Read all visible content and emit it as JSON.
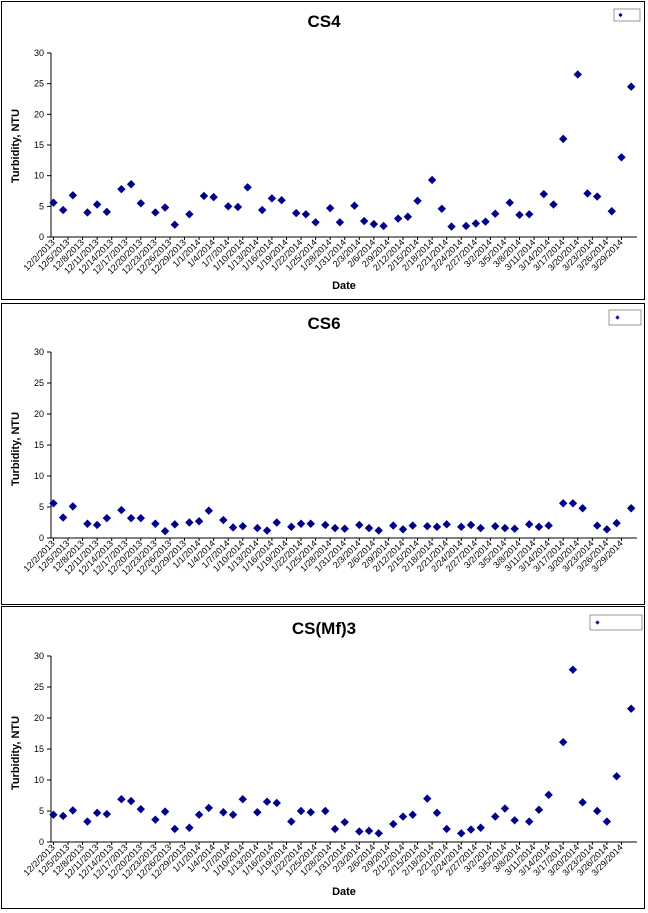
{
  "chart_data": [
    {
      "type": "scatter",
      "title": "CS4",
      "xlabel": "Date",
      "ylabel": "Turbidity, NTU",
      "ylim": [
        0,
        30
      ],
      "yticks": [
        0,
        5,
        10,
        15,
        20,
        25,
        30
      ],
      "legend_position": "top-right",
      "marker_color": "#00008B",
      "x_tick_labels": [
        "12/2/2013",
        "12/5/2013",
        "12/8/2013",
        "12/11/2013",
        "12/14/2013",
        "12/17/2013",
        "12/20/2013",
        "12/23/2013",
        "12/26/2013",
        "12/29/2013",
        "1/1/2014",
        "1/4/2014",
        "1/7/2014",
        "1/10/2014",
        "1/13/2014",
        "1/16/2014",
        "1/19/2014",
        "1/22/2014",
        "1/25/2014",
        "1/28/2014",
        "1/31/2014",
        "2/3/2014",
        "2/6/2014",
        "2/9/2014",
        "2/12/2014",
        "2/15/2014",
        "2/18/2014",
        "2/21/2014",
        "2/24/2014",
        "2/27/2014",
        "3/2/2014",
        "3/5/2014",
        "3/8/2014",
        "3/11/2014",
        "3/14/2014",
        "3/17/2014",
        "3/20/2014",
        "3/23/2014",
        "3/26/2014",
        "3/29/2014"
      ],
      "series": [
        {
          "x": [
            "12/2/2013",
            "12/4/2013",
            "12/6/2013",
            "12/9/2013",
            "12/11/2013",
            "12/13/2013",
            "12/16/2013",
            "12/18/2013",
            "12/20/2013",
            "12/23/2013",
            "12/25/2013",
            "12/27/2013",
            "12/30/2013",
            "1/2/2014",
            "1/4/2014",
            "1/7/2014",
            "1/9/2014",
            "1/11/2014",
            "1/14/2014",
            "1/16/2014",
            "1/18/2014",
            "1/21/2014",
            "1/23/2014",
            "1/25/2014",
            "1/28/2014",
            "1/30/2014",
            "2/2/2014",
            "2/4/2014",
            "2/6/2014",
            "2/8/2014",
            "2/11/2014",
            "2/13/2014",
            "2/15/2014",
            "2/18/2014",
            "2/20/2014",
            "2/22/2014",
            "2/25/2014",
            "2/27/2014",
            "3/1/2014",
            "3/3/2014",
            "3/6/2014",
            "3/8/2014",
            "3/10/2014",
            "3/13/2014",
            "3/15/2014",
            "3/17/2014",
            "3/20/2014",
            "3/22/2014",
            "3/24/2014",
            "3/27/2014",
            "3/29/2014",
            "3/31/2014"
          ],
          "y": [
            5.6,
            4.4,
            6.8,
            4.0,
            5.3,
            4.1,
            7.8,
            8.6,
            5.5,
            4.0,
            4.8,
            2.0,
            3.7,
            6.7,
            6.5,
            5.0,
            4.9,
            8.1,
            4.4,
            6.3,
            6.0,
            3.9,
            3.7,
            2.4,
            4.7,
            2.4,
            5.1,
            2.6,
            2.1,
            1.8,
            3.0,
            3.3,
            5.9,
            9.3,
            4.6,
            1.7,
            1.8,
            2.2,
            2.5,
            3.8,
            5.6,
            3.6,
            3.7,
            7.0,
            5.3,
            16.0,
            26.5,
            7.1,
            6.6,
            4.2,
            13.0,
            24.5
          ]
        }
      ]
    },
    {
      "type": "scatter",
      "title": "CS6",
      "xlabel": "",
      "ylabel": "Turbidity, NTU",
      "ylim": [
        0,
        30
      ],
      "yticks": [
        0,
        5,
        10,
        15,
        20,
        25,
        30
      ],
      "legend_position": "top-right",
      "marker_color": "#00008B",
      "x_tick_labels": [
        "12/2/2013",
        "12/5/2013",
        "12/8/2013",
        "12/11/2013",
        "12/14/2013",
        "12/17/2013",
        "12/20/2013",
        "12/23/2013",
        "12/26/2013",
        "12/29/2013",
        "1/1/2014",
        "1/4/2014",
        "1/7/2014",
        "1/10/2014",
        "1/13/2014",
        "1/16/2014",
        "1/19/2014",
        "1/22/2014",
        "1/25/2014",
        "1/28/2014",
        "1/31/2014",
        "2/3/2014",
        "2/6/2014",
        "2/9/2014",
        "2/12/2014",
        "2/15/2014",
        "2/18/2014",
        "2/21/2014",
        "2/24/2014",
        "2/27/2014",
        "3/2/2014",
        "3/5/2014",
        "3/8/2014",
        "3/11/2014",
        "3/14/2014",
        "3/17/2014",
        "3/20/2014",
        "3/23/2014",
        "3/26/2014",
        "3/29/2014"
      ],
      "series": [
        {
          "x": [
            "12/2/2013",
            "12/4/2013",
            "12/6/2013",
            "12/9/2013",
            "12/11/2013",
            "12/13/2013",
            "12/16/2013",
            "12/18/2013",
            "12/20/2013",
            "12/23/2013",
            "12/25/2013",
            "12/27/2013",
            "12/30/2013",
            "1/1/2014",
            "1/3/2014",
            "1/6/2014",
            "1/8/2014",
            "1/10/2014",
            "1/13/2014",
            "1/15/2014",
            "1/17/2014",
            "1/20/2014",
            "1/22/2014",
            "1/24/2014",
            "1/27/2014",
            "1/29/2014",
            "1/31/2014",
            "2/3/2014",
            "2/5/2014",
            "2/7/2014",
            "2/10/2014",
            "2/12/2014",
            "2/14/2014",
            "2/17/2014",
            "2/19/2014",
            "2/21/2014",
            "2/24/2014",
            "2/26/2014",
            "2/28/2014",
            "3/3/2014",
            "3/5/2014",
            "3/7/2014",
            "3/10/2014",
            "3/12/2014",
            "3/14/2014",
            "3/17/2014",
            "3/19/2014",
            "3/21/2014",
            "3/24/2014",
            "3/26/2014",
            "3/28/2014",
            "3/31/2014"
          ],
          "y": [
            5.6,
            3.3,
            5.1,
            2.3,
            2.1,
            3.2,
            4.5,
            3.2,
            3.2,
            2.3,
            1.1,
            2.2,
            2.5,
            2.7,
            4.4,
            2.9,
            1.7,
            1.9,
            1.6,
            1.2,
            2.5,
            1.8,
            2.3,
            2.3,
            2.1,
            1.6,
            1.5,
            2.1,
            1.6,
            1.2,
            2.0,
            1.4,
            2.0,
            1.9,
            1.8,
            2.2,
            1.8,
            2.1,
            1.6,
            1.9,
            1.6,
            1.5,
            2.2,
            1.8,
            2.0,
            5.6,
            5.6,
            4.8,
            2.0,
            1.4,
            2.4,
            4.8
          ]
        }
      ]
    },
    {
      "type": "scatter",
      "title": "CS(Mf)3",
      "xlabel": "Date",
      "ylabel": "Turbidity, NTU",
      "ylim": [
        0,
        30
      ],
      "yticks": [
        0,
        5,
        10,
        15,
        20,
        25,
        30
      ],
      "legend_position": "top-right",
      "marker_color": "#00008B",
      "x_tick_labels": [
        "12/2/2013",
        "12/5/2013",
        "12/8/2013",
        "12/11/2013",
        "12/14/2013",
        "12/17/2013",
        "12/20/2013",
        "12/23/2013",
        "12/26/2013",
        "12/29/2013",
        "1/1/2014",
        "1/4/2014",
        "1/7/2014",
        "1/10/2014",
        "1/13/2014",
        "1/16/2014",
        "1/19/2014",
        "1/22/2014",
        "1/25/2014",
        "1/28/2014",
        "1/31/2014",
        "2/3/2014",
        "2/6/2014",
        "2/9/2014",
        "2/12/2014",
        "2/15/2014",
        "2/18/2014",
        "2/21/2014",
        "2/24/2014",
        "2/27/2014",
        "3/2/2014",
        "3/5/2014",
        "3/8/2014",
        "3/11/2014",
        "3/14/2014",
        "3/17/2014",
        "3/20/2014",
        "3/23/2014",
        "3/26/2014",
        "3/29/2014"
      ],
      "series": [
        {
          "x": [
            "12/2/2013",
            "12/4/2013",
            "12/6/2013",
            "12/9/2013",
            "12/11/2013",
            "12/13/2013",
            "12/16/2013",
            "12/18/2013",
            "12/20/2013",
            "12/23/2013",
            "12/25/2013",
            "12/27/2013",
            "12/30/2013",
            "1/1/2014",
            "1/3/2014",
            "1/6/2014",
            "1/8/2014",
            "1/10/2014",
            "1/13/2014",
            "1/15/2014",
            "1/17/2014",
            "1/20/2014",
            "1/22/2014",
            "1/24/2014",
            "1/27/2014",
            "1/29/2014",
            "1/31/2014",
            "2/3/2014",
            "2/5/2014",
            "2/7/2014",
            "2/10/2014",
            "2/12/2014",
            "2/14/2014",
            "2/17/2014",
            "2/19/2014",
            "2/21/2014",
            "2/24/2014",
            "2/26/2014",
            "2/28/2014",
            "3/3/2014",
            "3/5/2014",
            "3/7/2014",
            "3/10/2014",
            "3/12/2014",
            "3/14/2014",
            "3/17/2014",
            "3/19/2014",
            "3/21/2014",
            "3/24/2014",
            "3/26/2014",
            "3/28/2014",
            "3/31/2014"
          ],
          "y": [
            4.4,
            4.2,
            5.1,
            3.3,
            4.7,
            4.5,
            6.9,
            6.6,
            5.3,
            3.6,
            4.9,
            2.1,
            2.3,
            4.4,
            5.5,
            4.8,
            4.4,
            6.9,
            4.8,
            6.5,
            6.3,
            3.3,
            5.0,
            4.8,
            5.0,
            2.1,
            3.2,
            1.7,
            1.8,
            1.4,
            2.9,
            4.1,
            4.4,
            7.0,
            4.7,
            2.1,
            1.4,
            2.0,
            2.3,
            4.1,
            5.4,
            3.5,
            3.3,
            5.2,
            7.6,
            16.1,
            27.8,
            6.4,
            5.0,
            3.3,
            10.6,
            21.5
          ]
        }
      ]
    }
  ]
}
